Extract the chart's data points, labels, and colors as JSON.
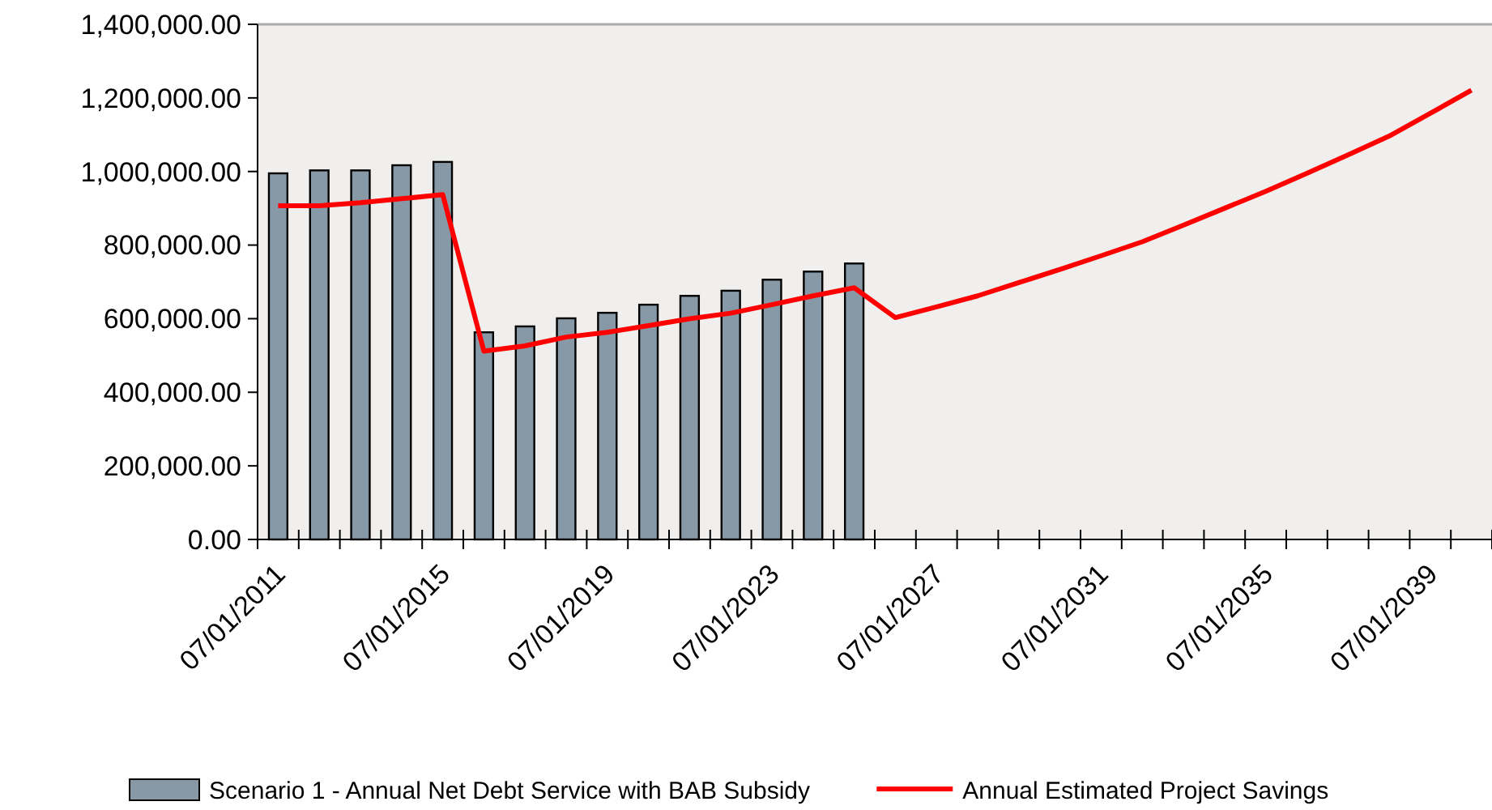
{
  "chart_data": {
    "type": "bar",
    "categories": [
      "07/01/2011",
      null,
      null,
      null,
      "07/01/2015",
      null,
      null,
      null,
      "07/01/2019",
      null,
      null,
      null,
      "07/01/2023",
      null,
      null,
      null,
      "07/01/2027",
      null,
      null,
      null,
      "07/01/2031",
      null,
      null,
      null,
      "07/01/2035",
      null,
      null,
      null,
      "07/01/2039",
      null
    ],
    "series": [
      {
        "name": "Scenario 1 - Annual Net Debt Service with BAB Subsidy",
        "color": "#8798a6",
        "values": [
          995000,
          1003000,
          1003000,
          1017000,
          1026000,
          563000,
          579000,
          601000,
          616000,
          638000,
          662000,
          676000,
          706000,
          728000,
          750000,
          null,
          null,
          null,
          null,
          null,
          null,
          null,
          null,
          null,
          null,
          null,
          null,
          null,
          null,
          null
        ]
      },
      {
        "name": "Annual Estimated Project Savings",
        "type": "line",
        "color": "#ff0000",
        "values": [
          907000,
          907000,
          915000,
          926000,
          937000,
          512000,
          526000,
          550000,
          563000,
          581000,
          600000,
          615000,
          638000,
          662000,
          684000,
          603000,
          632000,
          662000,
          698000,
          734000,
          771000,
          809000,
          854000,
          900000,
          946000,
          995000,
          1045000,
          1096000,
          1158000,
          1221000
        ]
      }
    ],
    "ylim": [
      0,
      1400000
    ],
    "yticks": [
      {
        "value": 0,
        "label": "0.00"
      },
      {
        "value": 200000,
        "label": "200,000.00"
      },
      {
        "value": 400000,
        "label": "400,000.00"
      },
      {
        "value": 600000,
        "label": "600,000.00"
      },
      {
        "value": 800000,
        "label": "800,000.00"
      },
      {
        "value": 1000000,
        "label": "1,000,000.00"
      },
      {
        "value": 1200000,
        "label": "1,200,000.00"
      },
      {
        "value": 1400000,
        "label": "1,400,000.00"
      }
    ],
    "grid": false,
    "legend": "bottom",
    "marker": "none",
    "line_style": "solid"
  }
}
